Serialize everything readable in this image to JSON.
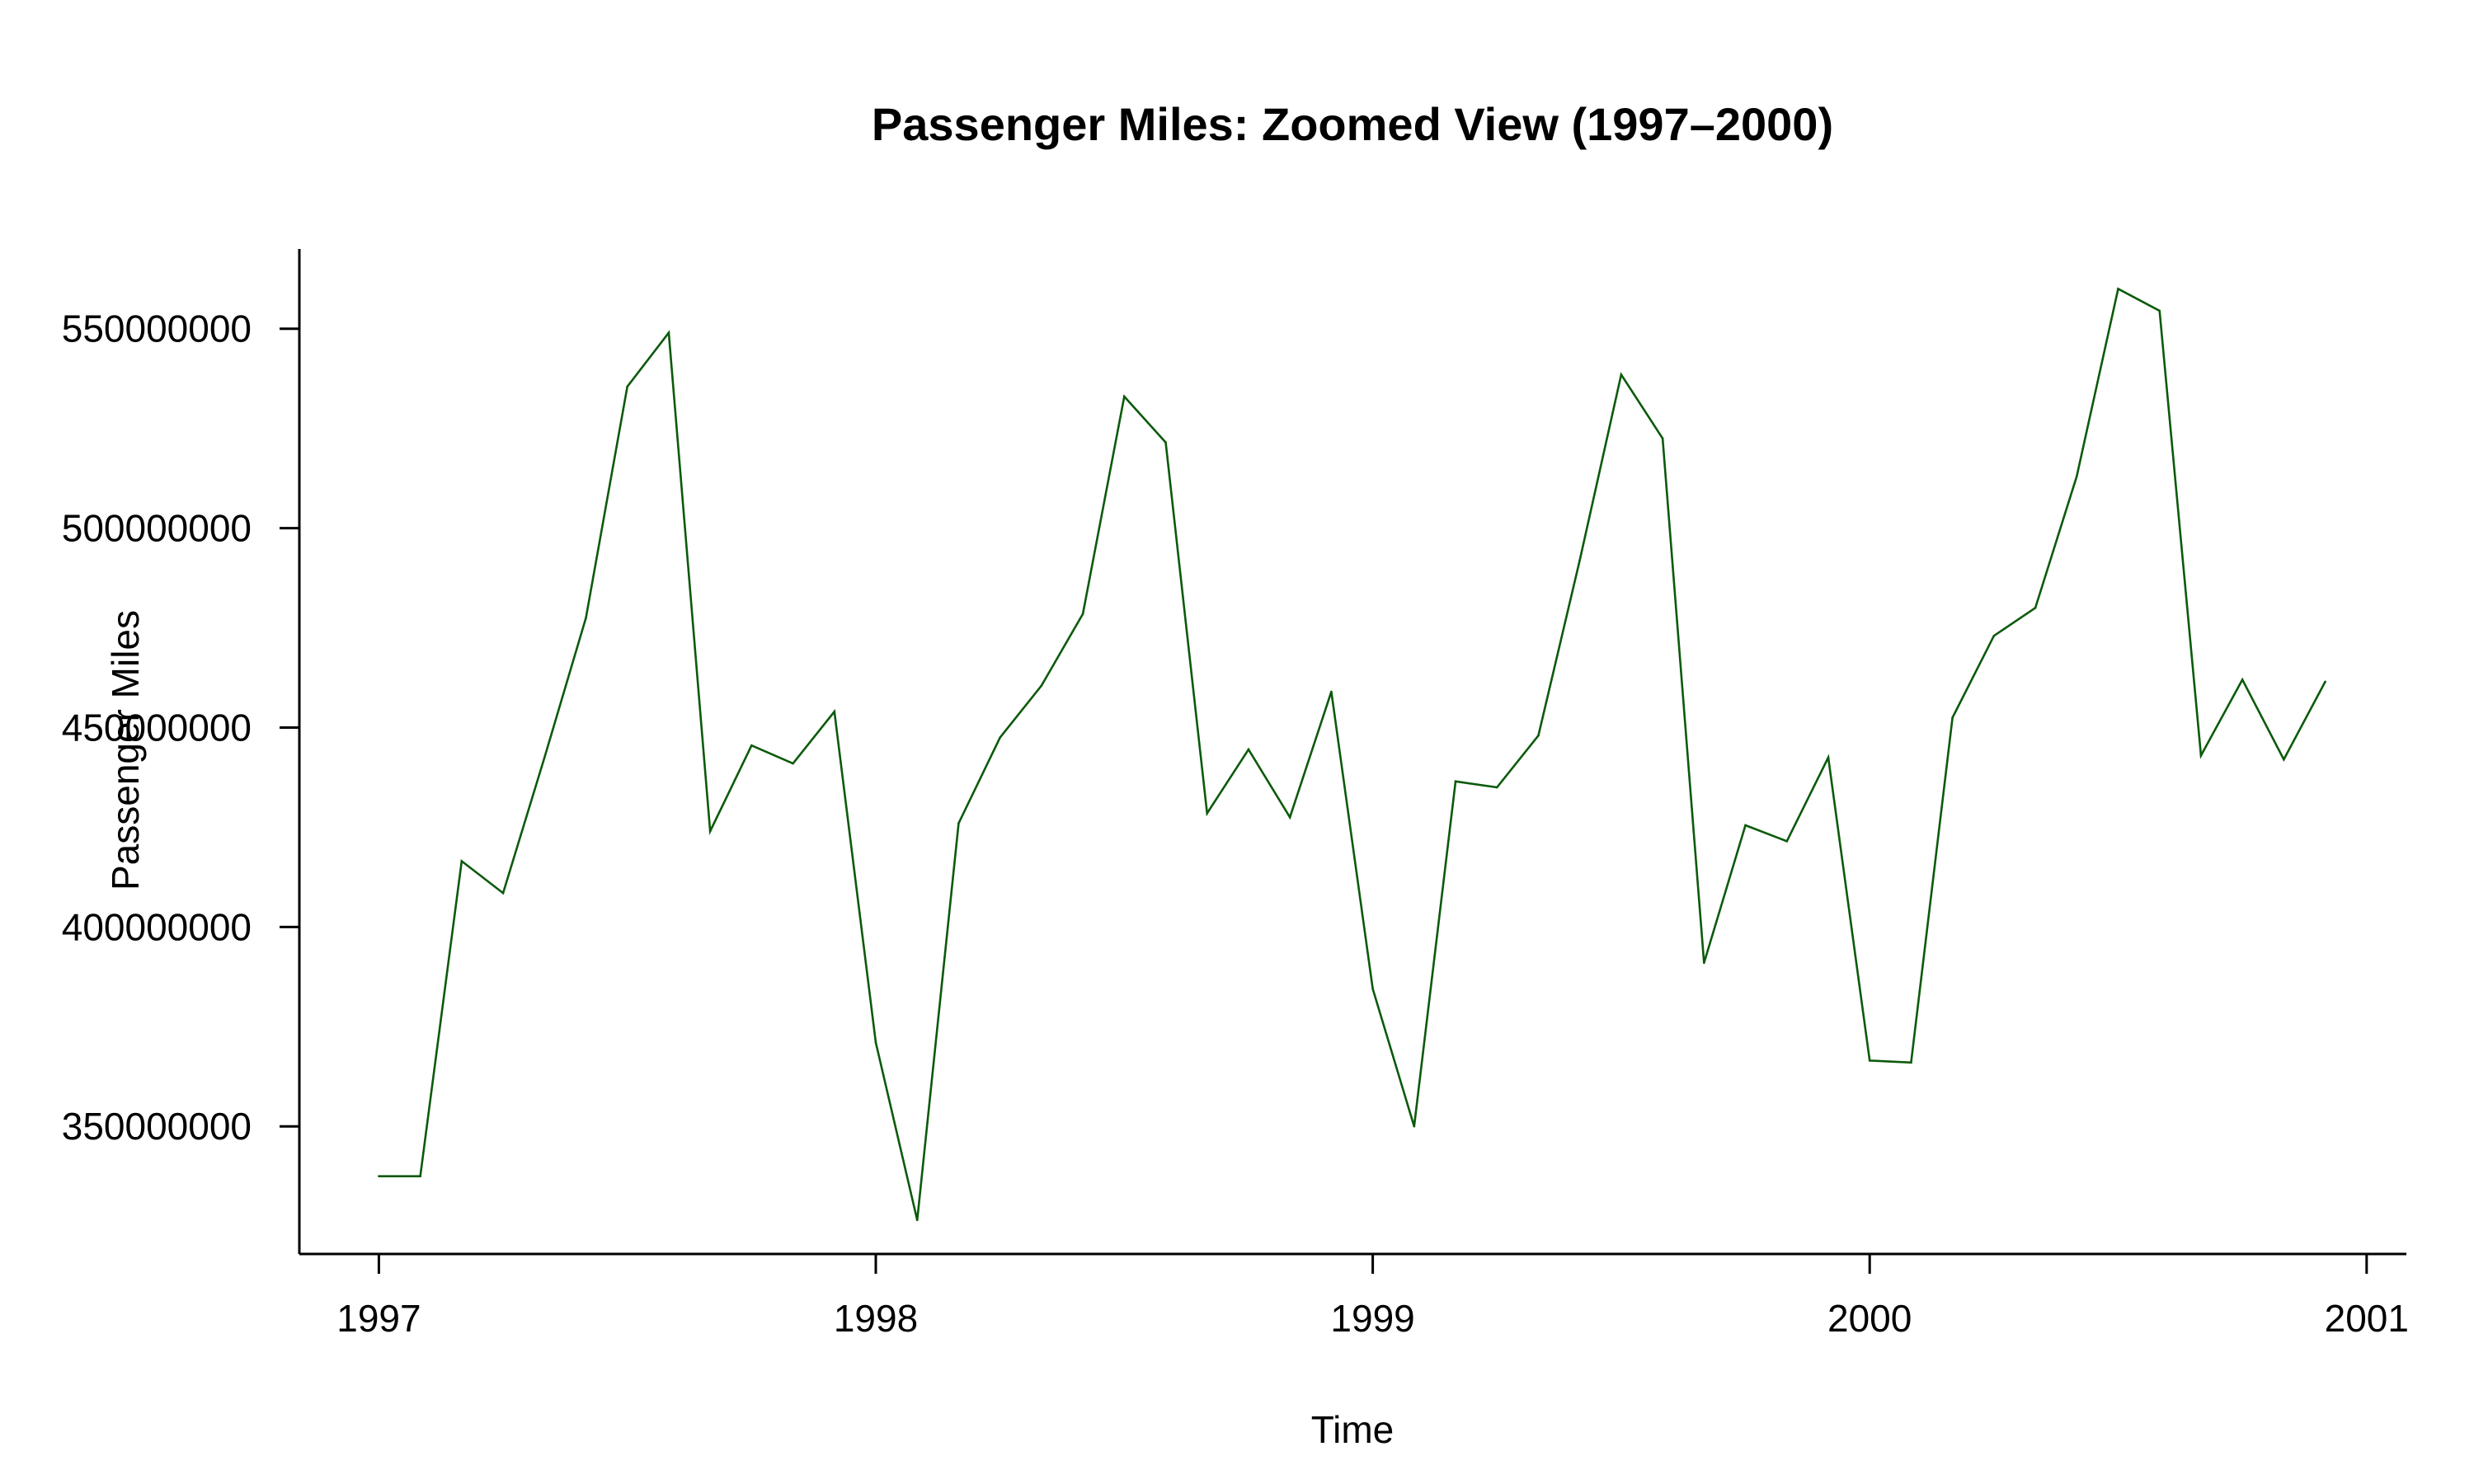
{
  "chart_data": {
    "type": "line",
    "title": "Passenger Miles: Zoomed View (1997–2000)",
    "xlabel": "Time",
    "ylabel": "Passenger Miles",
    "xlim": [
      1996.84,
      2001.08
    ],
    "ylim": [
      318000000,
      570000000
    ],
    "x_ticks": [
      1997,
      1998,
      1999,
      2000,
      2001
    ],
    "x_tick_labels": [
      "1997",
      "1998",
      "1999",
      "2000",
      "2001"
    ],
    "y_ticks": [
      350000000,
      400000000,
      450000000,
      500000000,
      550000000
    ],
    "y_tick_labels": [
      "350000000",
      "400000000",
      "450000000",
      "500000000",
      "550000000"
    ],
    "grid": false,
    "legend": "none",
    "line_color": "#0b5a0b",
    "start": "1997-01",
    "frequency": "monthly",
    "x": [
      "1997-01",
      "1997-02",
      "1997-03",
      "1997-04",
      "1997-05",
      "1997-06",
      "1997-07",
      "1997-08",
      "1997-09",
      "1997-10",
      "1997-11",
      "1997-12",
      "1998-01",
      "1998-02",
      "1998-03",
      "1998-04",
      "1998-05",
      "1998-06",
      "1998-07",
      "1998-08",
      "1998-09",
      "1998-10",
      "1998-11",
      "1998-12",
      "1999-01",
      "1999-02",
      "1999-03",
      "1999-04",
      "1999-05",
      "1999-06",
      "1999-07",
      "1999-08",
      "1999-09",
      "1999-10",
      "1999-11",
      "1999-12",
      "2000-01",
      "2000-02",
      "2000-03",
      "2000-04",
      "2000-05",
      "2000-06",
      "2000-07",
      "2000-08",
      "2000-09",
      "2000-10",
      "2000-11",
      "2000-12"
    ],
    "series": [
      {
        "values": [
          337500000,
          337500000,
          416500000,
          408500000,
          442500000,
          477500000,
          535500000,
          549000000,
          424000000,
          445500000,
          441000000,
          454000000,
          371000000,
          326500000,
          426000000,
          447500000,
          460500000,
          478500000,
          533000000,
          521500000,
          428500000,
          444500000,
          427500000,
          459000000,
          384500000,
          350000000,
          436500000,
          435000000,
          448000000,
          492000000,
          538500000,
          522500000,
          391000000,
          425500000,
          421500000,
          442500000,
          366500000,
          366000000,
          452500000,
          473000000,
          480000000,
          513000000,
          560000000,
          554500000,
          443000000,
          462000000,
          442000000,
          461500000
        ]
      }
    ]
  }
}
